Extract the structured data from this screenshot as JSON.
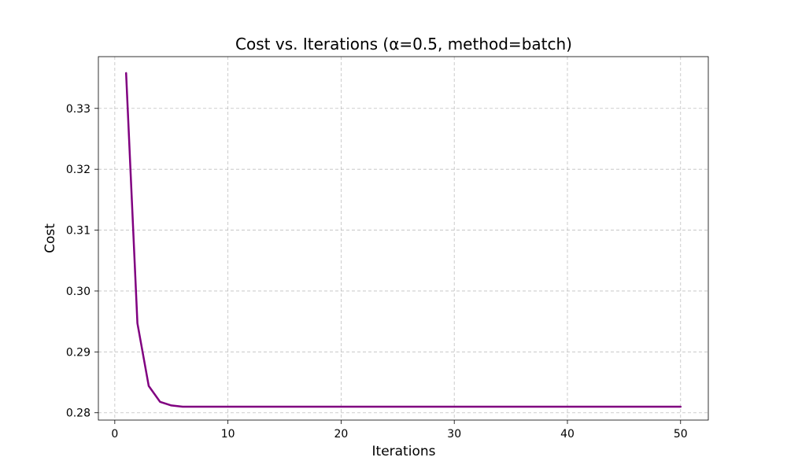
{
  "chart_data": {
    "type": "line",
    "title": "Cost vs. Iterations (α=0.5, method=batch)",
    "xlabel": "Iterations",
    "ylabel": "Cost",
    "xlim": [
      -1.45,
      52.45
    ],
    "ylim": [
      0.2788,
      0.3385
    ],
    "xticks": [
      0,
      10,
      20,
      30,
      40,
      50
    ],
    "yticks": [
      0.28,
      0.29,
      0.3,
      0.31,
      0.32,
      0.33
    ],
    "xtick_labels": [
      "0",
      "10",
      "20",
      "30",
      "40",
      "50"
    ],
    "ytick_labels": [
      "0.28",
      "0.29",
      "0.30",
      "0.31",
      "0.32",
      "0.33"
    ],
    "grid": true,
    "line_color": "#800080",
    "series": [
      {
        "x": [
          1,
          2,
          3,
          4,
          5,
          6,
          7,
          8,
          9,
          10,
          11,
          12,
          13,
          14,
          15,
          16,
          17,
          18,
          19,
          20,
          21,
          22,
          23,
          24,
          25,
          26,
          27,
          28,
          29,
          30,
          31,
          32,
          33,
          34,
          35,
          36,
          37,
          38,
          39,
          40,
          41,
          42,
          43,
          44,
          45,
          46,
          47,
          48,
          49,
          50
        ],
        "values": [
          0.3358,
          0.2947,
          0.2844,
          0.2818,
          0.2812,
          0.281,
          0.281,
          0.281,
          0.281,
          0.281,
          0.281,
          0.281,
          0.281,
          0.281,
          0.281,
          0.281,
          0.281,
          0.281,
          0.281,
          0.281,
          0.281,
          0.281,
          0.281,
          0.281,
          0.281,
          0.281,
          0.281,
          0.281,
          0.281,
          0.281,
          0.281,
          0.281,
          0.281,
          0.281,
          0.281,
          0.281,
          0.281,
          0.281,
          0.281,
          0.281,
          0.281,
          0.281,
          0.281,
          0.281,
          0.281,
          0.281,
          0.281,
          0.281,
          0.281,
          0.281
        ]
      }
    ]
  }
}
